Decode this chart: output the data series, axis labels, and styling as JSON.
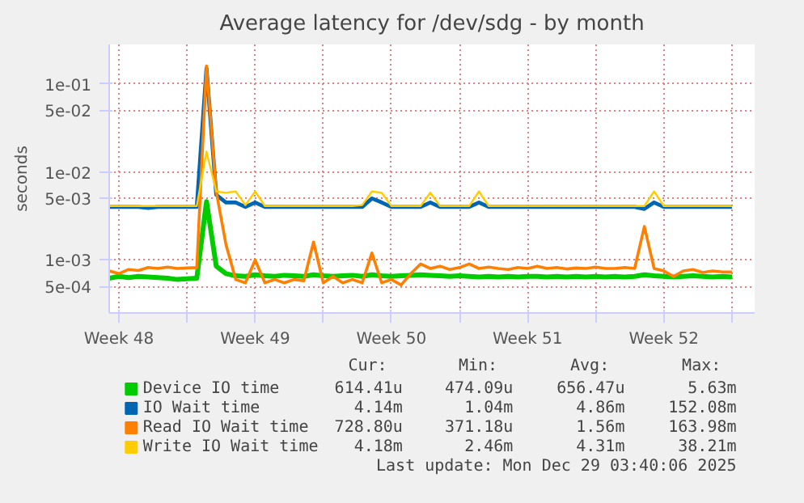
{
  "chart_data": {
    "type": "line",
    "title": "Average latency for /dev/sdg - by month",
    "ylabel": "seconds",
    "log": "y",
    "grid": true,
    "legend": "bottom",
    "marker": "none",
    "line_style": "solid",
    "xlim": [
      "2025-11-27T00:00",
      "2025-12-30T04:00"
    ],
    "xticks": [
      {
        "value": "2025-11-27T12:00",
        "label": "Week 48"
      },
      {
        "value": "2025-12-01",
        "label": null
      },
      {
        "value": "2025-12-04T12:00",
        "label": "Week 49"
      },
      {
        "value": "2025-12-08",
        "label": null
      },
      {
        "value": "2025-12-11T12:00",
        "label": "Week 50"
      },
      {
        "value": "2025-12-15",
        "label": null
      },
      {
        "value": "2025-12-18T12:00",
        "label": "Week 51"
      },
      {
        "value": "2025-12-22",
        "label": null
      },
      {
        "value": "2025-12-25T12:00",
        "label": "Week 52"
      },
      {
        "value": "2025-12-29",
        "label": null
      }
    ],
    "ylim": [
      0.00025,
      0.28
    ],
    "yticks": [
      {
        "value": 0.0005,
        "label": "5e-04"
      },
      {
        "value": 0.001,
        "label": "1e-03"
      },
      {
        "value": 0.005,
        "label": "5e-03"
      },
      {
        "value": 0.01,
        "label": "1e-02"
      },
      {
        "value": 0.05,
        "label": "5e-02"
      },
      {
        "value": 0.1,
        "label": "1e-01"
      }
    ],
    "x": [
      "2025-11-27T00:00",
      "2025-11-27T12:00",
      "2025-11-28T00:00",
      "2025-11-28T12:00",
      "2025-11-29T00:00",
      "2025-11-29T12:00",
      "2025-11-30T00:00",
      "2025-11-30T12:00",
      "2025-12-01T00:00",
      "2025-12-01T12:00",
      "2025-12-02T00:00",
      "2025-12-02T12:00",
      "2025-12-03T00:00",
      "2025-12-03T12:00",
      "2025-12-04T00:00",
      "2025-12-04T12:00",
      "2025-12-05T00:00",
      "2025-12-05T12:00",
      "2025-12-06T00:00",
      "2025-12-06T12:00",
      "2025-12-07T00:00",
      "2025-12-07T12:00",
      "2025-12-08T00:00",
      "2025-12-08T12:00",
      "2025-12-09T00:00",
      "2025-12-09T12:00",
      "2025-12-10T00:00",
      "2025-12-10T12:00",
      "2025-12-11T00:00",
      "2025-12-11T12:00",
      "2025-12-12T00:00",
      "2025-12-12T12:00",
      "2025-12-13T00:00",
      "2025-12-13T12:00",
      "2025-12-14T00:00",
      "2025-12-14T12:00",
      "2025-12-15T00:00",
      "2025-12-15T12:00",
      "2025-12-16T00:00",
      "2025-12-16T12:00",
      "2025-12-17T00:00",
      "2025-12-17T12:00",
      "2025-12-18T00:00",
      "2025-12-18T12:00",
      "2025-12-19T00:00",
      "2025-12-19T12:00",
      "2025-12-20T00:00",
      "2025-12-20T12:00",
      "2025-12-21T00:00",
      "2025-12-21T12:00",
      "2025-12-22T00:00",
      "2025-12-22T12:00",
      "2025-12-23T00:00",
      "2025-12-23T12:00",
      "2025-12-24T00:00",
      "2025-12-24T12:00",
      "2025-12-25T00:00",
      "2025-12-25T12:00",
      "2025-12-26T00:00",
      "2025-12-26T12:00",
      "2025-12-27T00:00",
      "2025-12-27T12:00",
      "2025-12-28T00:00",
      "2025-12-28T12:00",
      "2025-12-29T00:00"
    ],
    "series": [
      {
        "name": "Device IO time",
        "color": "#00cc00",
        "values": [
          0.00062,
          0.00065,
          0.00063,
          0.00065,
          0.00064,
          0.00063,
          0.00062,
          0.0006,
          0.00061,
          0.00062,
          0.0046,
          0.00085,
          0.0007,
          0.00066,
          0.00065,
          0.00068,
          0.00066,
          0.00065,
          0.00067,
          0.00066,
          0.00065,
          0.00068,
          0.00066,
          0.00065,
          0.00066,
          0.00067,
          0.00065,
          0.00068,
          0.00066,
          0.00065,
          0.00066,
          0.00067,
          0.00068,
          0.00067,
          0.00066,
          0.00065,
          0.00066,
          0.00065,
          0.00064,
          0.00065,
          0.00064,
          0.00065,
          0.00064,
          0.00065,
          0.00065,
          0.00064,
          0.00065,
          0.00064,
          0.00065,
          0.00064,
          0.00065,
          0.00064,
          0.00065,
          0.00064,
          0.00065,
          0.00068,
          0.00066,
          0.00065,
          0.00064,
          0.00065,
          0.00066,
          0.00065,
          0.00064,
          0.00065,
          0.00064
        ]
      },
      {
        "name": "IO Wait time",
        "color": "#0066b3",
        "values": [
          0.004,
          0.004,
          0.004,
          0.004,
          0.0039,
          0.004,
          0.004,
          0.004,
          0.004,
          0.004,
          0.15,
          0.0055,
          0.0045,
          0.0045,
          0.004,
          0.0045,
          0.004,
          0.004,
          0.004,
          0.004,
          0.004,
          0.004,
          0.004,
          0.004,
          0.004,
          0.004,
          0.004,
          0.005,
          0.0045,
          0.004,
          0.004,
          0.004,
          0.004,
          0.0045,
          0.004,
          0.004,
          0.004,
          0.004,
          0.0045,
          0.004,
          0.004,
          0.004,
          0.004,
          0.004,
          0.004,
          0.004,
          0.004,
          0.004,
          0.004,
          0.004,
          0.004,
          0.004,
          0.004,
          0.004,
          0.004,
          0.0038,
          0.0045,
          0.004,
          0.004,
          0.004,
          0.004,
          0.004,
          0.004,
          0.004,
          0.004
        ]
      },
      {
        "name": "Read IO Wait time",
        "color": "#ff8000",
        "values": [
          0.00075,
          0.0007,
          0.00078,
          0.00076,
          0.00082,
          0.0008,
          0.00083,
          0.0008,
          0.00081,
          0.00082,
          0.16,
          0.006,
          0.0015,
          0.0006,
          0.00055,
          0.001,
          0.00055,
          0.0006,
          0.00055,
          0.0006,
          0.00058,
          0.0016,
          0.00055,
          0.00065,
          0.00055,
          0.0006,
          0.00055,
          0.0012,
          0.00055,
          0.0006,
          0.00052,
          0.0007,
          0.0009,
          0.0008,
          0.00085,
          0.00078,
          0.00082,
          0.0009,
          0.0008,
          0.00083,
          0.0008,
          0.00078,
          0.00082,
          0.0008,
          0.00085,
          0.0008,
          0.00082,
          0.00079,
          0.00081,
          0.0008,
          0.00083,
          0.0008,
          0.0008,
          0.00082,
          0.0008,
          0.0024,
          0.0008,
          0.00075,
          0.00065,
          0.00075,
          0.00078,
          0.00072,
          0.00075,
          0.00073,
          0.00073
        ]
      },
      {
        "name": "Write IO Wait time",
        "color": "#ffcc00",
        "values": [
          0.0041,
          0.0041,
          0.0041,
          0.0041,
          0.0041,
          0.0041,
          0.0041,
          0.0041,
          0.0041,
          0.0041,
          0.017,
          0.006,
          0.0058,
          0.006,
          0.0042,
          0.006,
          0.0041,
          0.0041,
          0.0041,
          0.0041,
          0.0041,
          0.0041,
          0.0041,
          0.0041,
          0.0041,
          0.0041,
          0.0042,
          0.006,
          0.0058,
          0.0041,
          0.0041,
          0.0041,
          0.0041,
          0.0058,
          0.0041,
          0.0041,
          0.0041,
          0.0041,
          0.006,
          0.0041,
          0.0041,
          0.0041,
          0.0041,
          0.0041,
          0.0041,
          0.0041,
          0.0041,
          0.0041,
          0.0041,
          0.0041,
          0.0041,
          0.0041,
          0.0041,
          0.0041,
          0.0041,
          0.0041,
          0.006,
          0.0041,
          0.0041,
          0.0041,
          0.0041,
          0.0041,
          0.0041,
          0.0041,
          0.0041
        ]
      }
    ],
    "annotations": [
      "Cur:",
      "Min:",
      "Avg:",
      "Max:",
      "614.41u",
      "474.09u",
      "656.47u",
      "5.63m",
      "4.14m",
      "1.04m",
      "4.86m",
      "152.08m",
      "728.80u",
      "371.18u",
      "1.56m",
      "163.98m",
      "4.18m",
      "2.46m",
      "4.31m",
      "38.21m",
      "Last update: Mon Dec 29 03:40:06 2025"
    ]
  }
}
